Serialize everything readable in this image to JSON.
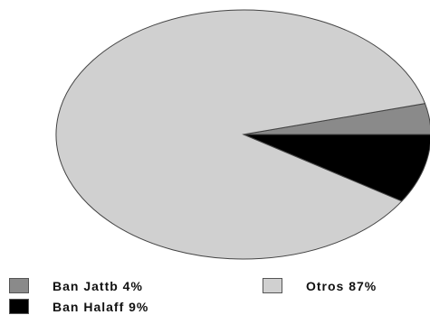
{
  "chart_data": {
    "type": "pie",
    "slices": [
      {
        "label": "Ban Jattb 4%",
        "value": 4,
        "color": "#8a8a8a"
      },
      {
        "label": "Ban Halaff 9%",
        "value": 9,
        "color": "#000000"
      },
      {
        "label": "Otros 87%",
        "value": 87,
        "color": "#d0d0d0"
      }
    ],
    "legend": [
      {
        "label": "Ban Jattb 4%",
        "color": "#8a8a8a"
      },
      {
        "label": "Otros 87%",
        "color": "#d0d0d0"
      },
      {
        "label": "Ban Halaff 9%",
        "color": "#000000"
      }
    ],
    "legend_placement": "bottom"
  }
}
